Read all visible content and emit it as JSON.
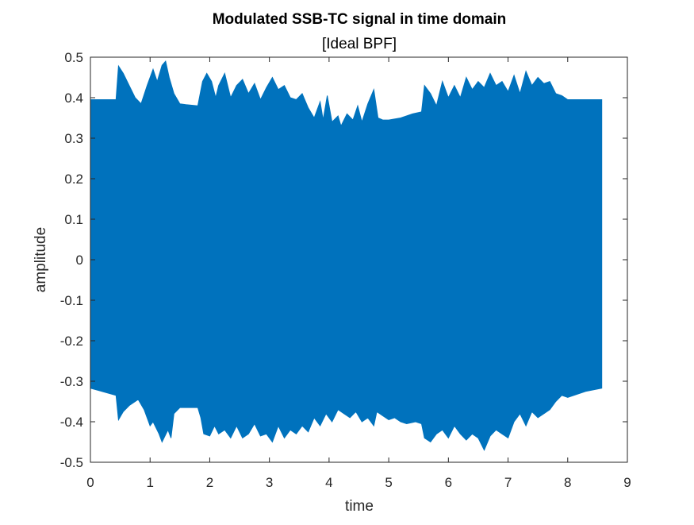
{
  "chart_data": {
    "type": "area",
    "title": "Modulated SSB-TC signal in time domain",
    "subtitle": "[Ideal BPF]",
    "xlabel": "time",
    "ylabel": "amplitude",
    "xlim": [
      0,
      9
    ],
    "ylim": [
      -0.5,
      0.5
    ],
    "xticks": [
      "0",
      "1",
      "2",
      "3",
      "4",
      "5",
      "6",
      "7",
      "8",
      "9"
    ],
    "yticks": [
      "0.5",
      "0.4",
      "0.3",
      "0.2",
      "0.1",
      "0",
      "-0.1",
      "-0.2",
      "-0.3",
      "-0.4",
      "-0.5"
    ],
    "grid": false,
    "series_color": "#0072BD",
    "x_end": 8.57,
    "upper_envelope": [
      [
        0,
        0.395
      ],
      [
        0.43,
        0.395
      ],
      [
        0.47,
        0.478
      ],
      [
        0.55,
        0.46
      ],
      [
        0.65,
        0.43
      ],
      [
        0.75,
        0.4
      ],
      [
        0.85,
        0.385
      ],
      [
        0.95,
        0.43
      ],
      [
        1.05,
        0.47
      ],
      [
        1.12,
        0.44
      ],
      [
        1.2,
        0.48
      ],
      [
        1.26,
        0.49
      ],
      [
        1.32,
        0.45
      ],
      [
        1.4,
        0.41
      ],
      [
        1.5,
        0.385
      ],
      [
        1.6,
        0.383
      ],
      [
        1.8,
        0.38
      ],
      [
        1.88,
        0.44
      ],
      [
        1.95,
        0.46
      ],
      [
        2.03,
        0.44
      ],
      [
        2.1,
        0.4
      ],
      [
        2.15,
        0.43
      ],
      [
        2.25,
        0.46
      ],
      [
        2.35,
        0.4
      ],
      [
        2.45,
        0.43
      ],
      [
        2.55,
        0.445
      ],
      [
        2.65,
        0.41
      ],
      [
        2.75,
        0.435
      ],
      [
        2.85,
        0.395
      ],
      [
        2.95,
        0.425
      ],
      [
        3.05,
        0.45
      ],
      [
        3.15,
        0.42
      ],
      [
        3.25,
        0.43
      ],
      [
        3.35,
        0.4
      ],
      [
        3.45,
        0.395
      ],
      [
        3.55,
        0.41
      ],
      [
        3.65,
        0.375
      ],
      [
        3.75,
        0.35
      ],
      [
        3.85,
        0.39
      ],
      [
        3.9,
        0.345
      ],
      [
        3.97,
        0.405
      ],
      [
        4.05,
        0.34
      ],
      [
        4.15,
        0.355
      ],
      [
        4.2,
        0.33
      ],
      [
        4.3,
        0.36
      ],
      [
        4.4,
        0.345
      ],
      [
        4.48,
        0.38
      ],
      [
        4.55,
        0.34
      ],
      [
        4.65,
        0.385
      ],
      [
        4.75,
        0.42
      ],
      [
        4.82,
        0.35
      ],
      [
        4.9,
        0.345
      ],
      [
        5.0,
        0.345
      ],
      [
        5.2,
        0.35
      ],
      [
        5.4,
        0.36
      ],
      [
        5.55,
        0.365
      ],
      [
        5.6,
        0.43
      ],
      [
        5.7,
        0.41
      ],
      [
        5.8,
        0.38
      ],
      [
        5.9,
        0.44
      ],
      [
        6.0,
        0.4
      ],
      [
        6.1,
        0.43
      ],
      [
        6.2,
        0.4
      ],
      [
        6.3,
        0.45
      ],
      [
        6.4,
        0.42
      ],
      [
        6.5,
        0.44
      ],
      [
        6.6,
        0.425
      ],
      [
        6.7,
        0.46
      ],
      [
        6.8,
        0.43
      ],
      [
        6.9,
        0.44
      ],
      [
        7.0,
        0.415
      ],
      [
        7.1,
        0.455
      ],
      [
        7.2,
        0.41
      ],
      [
        7.3,
        0.465
      ],
      [
        7.4,
        0.43
      ],
      [
        7.5,
        0.45
      ],
      [
        7.6,
        0.435
      ],
      [
        7.7,
        0.44
      ],
      [
        7.8,
        0.41
      ],
      [
        7.9,
        0.405
      ],
      [
        8.0,
        0.395
      ],
      [
        8.57,
        0.395
      ]
    ],
    "lower_envelope": [
      [
        0,
        -0.317
      ],
      [
        0.43,
        -0.335
      ],
      [
        0.47,
        -0.395
      ],
      [
        0.55,
        -0.375
      ],
      [
        0.65,
        -0.36
      ],
      [
        0.8,
        -0.345
      ],
      [
        0.9,
        -0.37
      ],
      [
        1.0,
        -0.41
      ],
      [
        1.05,
        -0.4
      ],
      [
        1.15,
        -0.43
      ],
      [
        1.2,
        -0.45
      ],
      [
        1.3,
        -0.42
      ],
      [
        1.35,
        -0.44
      ],
      [
        1.4,
        -0.38
      ],
      [
        1.5,
        -0.365
      ],
      [
        1.8,
        -0.365
      ],
      [
        1.85,
        -0.39
      ],
      [
        1.9,
        -0.43
      ],
      [
        2.0,
        -0.435
      ],
      [
        2.08,
        -0.41
      ],
      [
        2.15,
        -0.43
      ],
      [
        2.25,
        -0.42
      ],
      [
        2.35,
        -0.44
      ],
      [
        2.45,
        -0.41
      ],
      [
        2.55,
        -0.44
      ],
      [
        2.65,
        -0.43
      ],
      [
        2.75,
        -0.405
      ],
      [
        2.85,
        -0.435
      ],
      [
        2.95,
        -0.43
      ],
      [
        3.05,
        -0.45
      ],
      [
        3.15,
        -0.41
      ],
      [
        3.25,
        -0.44
      ],
      [
        3.35,
        -0.42
      ],
      [
        3.45,
        -0.43
      ],
      [
        3.55,
        -0.41
      ],
      [
        3.65,
        -0.425
      ],
      [
        3.75,
        -0.39
      ],
      [
        3.85,
        -0.41
      ],
      [
        3.95,
        -0.38
      ],
      [
        4.05,
        -0.4
      ],
      [
        4.15,
        -0.37
      ],
      [
        4.25,
        -0.38
      ],
      [
        4.35,
        -0.39
      ],
      [
        4.45,
        -0.375
      ],
      [
        4.55,
        -0.4
      ],
      [
        4.65,
        -0.39
      ],
      [
        4.75,
        -0.41
      ],
      [
        4.8,
        -0.375
      ],
      [
        4.9,
        -0.385
      ],
      [
        5.0,
        -0.395
      ],
      [
        5.1,
        -0.39
      ],
      [
        5.2,
        -0.4
      ],
      [
        5.3,
        -0.405
      ],
      [
        5.45,
        -0.4
      ],
      [
        5.55,
        -0.405
      ],
      [
        5.6,
        -0.44
      ],
      [
        5.7,
        -0.45
      ],
      [
        5.8,
        -0.43
      ],
      [
        5.9,
        -0.42
      ],
      [
        6.0,
        -0.44
      ],
      [
        6.1,
        -0.41
      ],
      [
        6.2,
        -0.43
      ],
      [
        6.3,
        -0.445
      ],
      [
        6.4,
        -0.43
      ],
      [
        6.5,
        -0.44
      ],
      [
        6.6,
        -0.47
      ],
      [
        6.7,
        -0.435
      ],
      [
        6.8,
        -0.42
      ],
      [
        6.9,
        -0.43
      ],
      [
        7.0,
        -0.44
      ],
      [
        7.1,
        -0.4
      ],
      [
        7.2,
        -0.38
      ],
      [
        7.3,
        -0.41
      ],
      [
        7.4,
        -0.375
      ],
      [
        7.5,
        -0.39
      ],
      [
        7.6,
        -0.38
      ],
      [
        7.7,
        -0.37
      ],
      [
        7.8,
        -0.35
      ],
      [
        7.9,
        -0.335
      ],
      [
        8.0,
        -0.34
      ],
      [
        8.3,
        -0.325
      ],
      [
        8.57,
        -0.317
      ]
    ]
  }
}
